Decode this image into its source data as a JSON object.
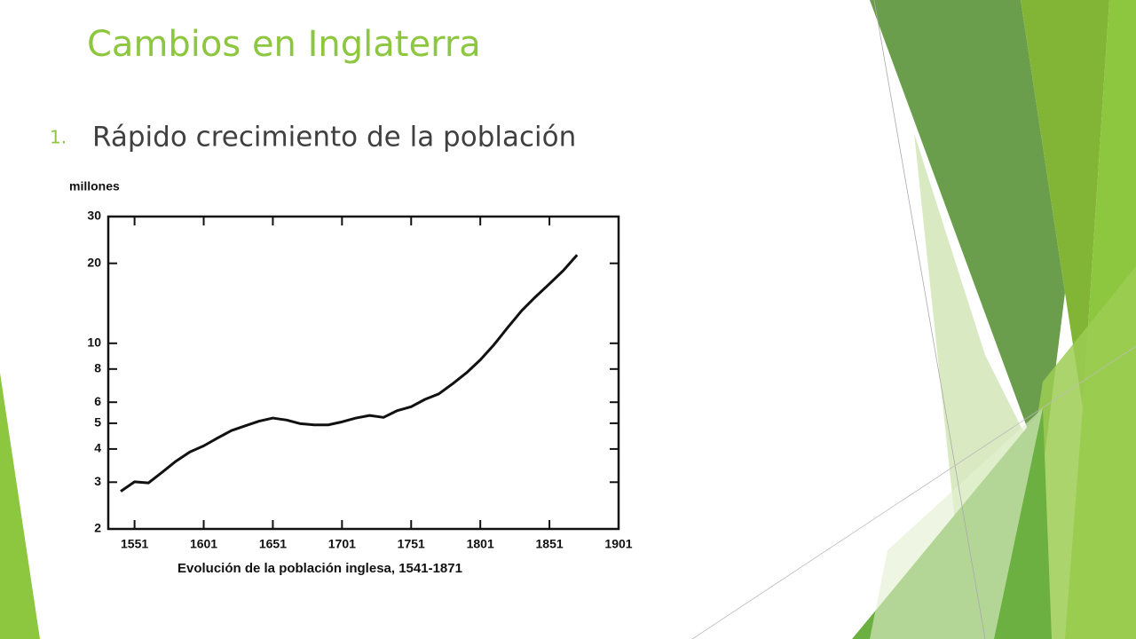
{
  "slide": {
    "title": "Cambios en Inglaterra",
    "bullet_number": "1.",
    "bullet_text": "Rápido crecimiento de la población"
  },
  "chart_data": {
    "type": "line",
    "y_label": "millones",
    "caption": "Evolución de la población inglesa, 1541-1871",
    "log_y": true,
    "x": [
      1541,
      1551,
      1561,
      1571,
      1581,
      1591,
      1601,
      1611,
      1621,
      1631,
      1641,
      1651,
      1661,
      1671,
      1681,
      1691,
      1701,
      1711,
      1721,
      1731,
      1741,
      1751,
      1761,
      1771,
      1781,
      1791,
      1801,
      1811,
      1821,
      1831,
      1841,
      1851,
      1861,
      1871
    ],
    "series": [
      {
        "color": "#111111",
        "values": [
          2.77,
          3.01,
          2.98,
          3.27,
          3.6,
          3.9,
          4.11,
          4.4,
          4.69,
          4.89,
          5.09,
          5.23,
          5.14,
          4.98,
          4.93,
          4.93,
          5.06,
          5.23,
          5.35,
          5.26,
          5.58,
          5.77,
          6.15,
          6.45,
          7.04,
          7.74,
          8.66,
          9.89,
          11.49,
          13.28,
          14.97,
          16.74,
          18.78,
          21.5
        ]
      }
    ],
    "xlim": [
      1532,
      1901
    ],
    "xticks": [
      1551,
      1601,
      1651,
      1701,
      1751,
      1801,
      1851,
      1901
    ],
    "ylim": [
      2,
      30
    ],
    "yticks": [
      2,
      3,
      4,
      5,
      6,
      8,
      10,
      20,
      30
    ]
  }
}
